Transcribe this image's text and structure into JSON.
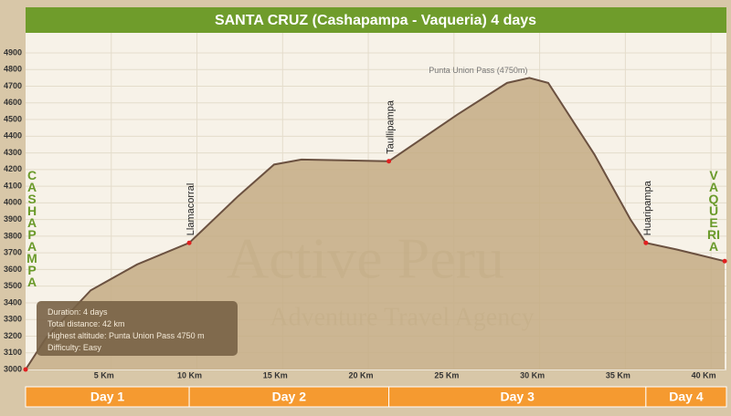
{
  "chart_data": {
    "type": "area",
    "title": "SANTA CRUZ (Cashapampa - Vaqueria) 4 days",
    "x": [
      0,
      1.2,
      3.8,
      6.5,
      9.55,
      12.4,
      14.5,
      16.1,
      21.2,
      25.2,
      28.1,
      29.4,
      30.5,
      33.2,
      35.3,
      36.2,
      38,
      40.8
    ],
    "values": [
      3000,
      3190,
      3475,
      3630,
      3760,
      4040,
      4230,
      4260,
      4250,
      4530,
      4720,
      4750,
      4720,
      4290,
      3900,
      3760,
      3720,
      3650
    ],
    "color": "#c4ab84",
    "line_color": "#6b5140",
    "xlim": [
      0,
      40.9
    ],
    "ylim": [
      3000,
      4900
    ],
    "xticks": [
      {
        "value": 5,
        "label": "5 Km"
      },
      {
        "value": 10,
        "label": "10 Km"
      },
      {
        "value": 15,
        "label": "15 Km"
      },
      {
        "value": 20,
        "label": "20 Km"
      },
      {
        "value": 25,
        "label": "25 Km"
      },
      {
        "value": 30,
        "label": "30 Km"
      },
      {
        "value": 35,
        "label": "35 Km"
      },
      {
        "value": 40,
        "label": "40 Km"
      }
    ],
    "yticks": [
      3000,
      3100,
      3200,
      3300,
      3400,
      3500,
      3600,
      3700,
      3800,
      3900,
      4000,
      4100,
      4200,
      4300,
      4400,
      4500,
      4600,
      4700,
      4800,
      4900
    ],
    "grid": true,
    "waypoints": [
      {
        "name": "Llamacorral",
        "x": 9.55,
        "y": 3760
      },
      {
        "name": "Taullipampa",
        "x": 21.2,
        "y": 4250
      },
      {
        "name": "Huaripampa",
        "x": 36.2,
        "y": 3760
      }
    ],
    "summit_label": "Punta Union Pass (4750m)",
    "start_label": "CASHAPAMPA",
    "end_label": "VAQUERIA",
    "watermark": [
      "Active Peru",
      "Adventure Travel Agency"
    ],
    "info": [
      "Duration: 4 days",
      "Total distance: 42 km",
      "Highest altitude: Punta Union Pass 4750 m",
      "Difficulty: Easy"
    ],
    "days": [
      {
        "label": "Day 1",
        "range": [
          0,
          9.55
        ]
      },
      {
        "label": "Day 2",
        "range": [
          9.55,
          21.2
        ]
      },
      {
        "label": "Day 3",
        "range": [
          21.2,
          36.2
        ]
      },
      {
        "label": "Day 4",
        "range": [
          36.2,
          40.9
        ]
      }
    ]
  }
}
